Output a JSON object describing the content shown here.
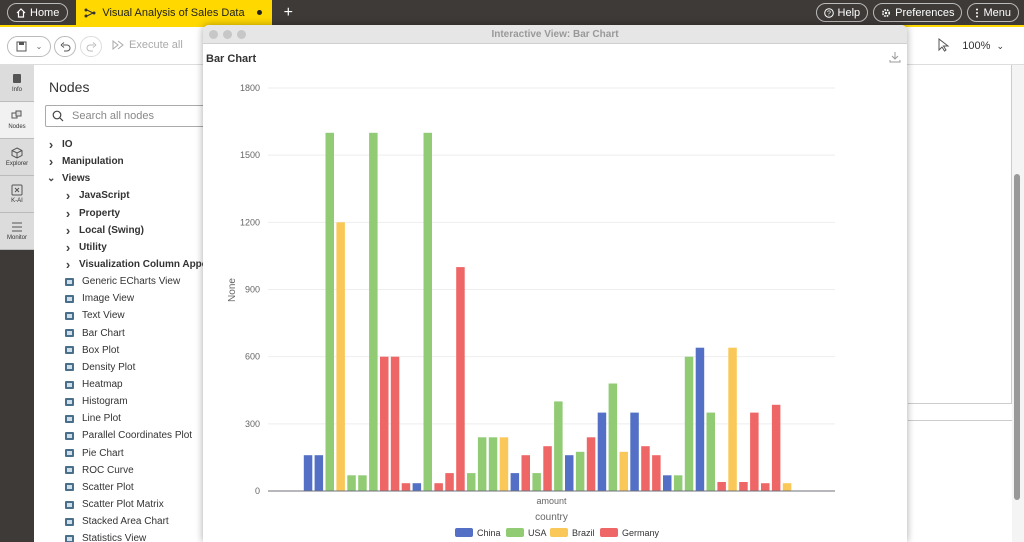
{
  "topbar": {
    "home_label": "Home",
    "workflow_tab_label": "Visual Analysis of Sales Data",
    "new_tab_label": "+",
    "help_label": "Help",
    "preferences_label": "Preferences",
    "menu_label": "Menu"
  },
  "toolbar": {
    "execute_all_label": "Execute all",
    "zoom_label": "100%"
  },
  "rail": {
    "items": [
      {
        "label": "Info",
        "icon": "info-icon"
      },
      {
        "label": "Nodes",
        "icon": "nodes-icon"
      },
      {
        "label": "Explorer",
        "icon": "explorer-icon"
      },
      {
        "label": "K-AI",
        "icon": "kai-icon"
      },
      {
        "label": "Monitor",
        "icon": "monitor-icon"
      }
    ]
  },
  "nodes_panel": {
    "title": "Nodes",
    "search_placeholder": "Search all nodes",
    "tree": [
      {
        "label": "IO",
        "kind": "cat",
        "level": 0,
        "expanded": false
      },
      {
        "label": "Manipulation",
        "kind": "cat",
        "level": 0,
        "expanded": false
      },
      {
        "label": "Views",
        "kind": "cat",
        "level": 0,
        "expanded": true
      },
      {
        "label": "JavaScript",
        "kind": "cat",
        "level": 1,
        "expanded": false
      },
      {
        "label": "Property",
        "kind": "cat",
        "level": 1,
        "expanded": false
      },
      {
        "label": "Local (Swing)",
        "kind": "cat",
        "level": 1,
        "expanded": false
      },
      {
        "label": "Utility",
        "kind": "cat",
        "level": 1,
        "expanded": false
      },
      {
        "label": "Visualization Column Appender",
        "kind": "cat",
        "level": 1,
        "expanded": false
      },
      {
        "label": "Generic ECharts View",
        "kind": "node",
        "level": 1
      },
      {
        "label": "Image View",
        "kind": "node",
        "level": 1
      },
      {
        "label": "Text View",
        "kind": "node",
        "level": 1
      },
      {
        "label": "Bar Chart",
        "kind": "node",
        "level": 1
      },
      {
        "label": "Box Plot",
        "kind": "node",
        "level": 1
      },
      {
        "label": "Density Plot",
        "kind": "node",
        "level": 1
      },
      {
        "label": "Heatmap",
        "kind": "node",
        "level": 1
      },
      {
        "label": "Histogram",
        "kind": "node",
        "level": 1
      },
      {
        "label": "Line Plot",
        "kind": "node",
        "level": 1
      },
      {
        "label": "Parallel Coordinates Plot",
        "kind": "node",
        "level": 1
      },
      {
        "label": "Pie Chart",
        "kind": "node",
        "level": 1
      },
      {
        "label": "ROC Curve",
        "kind": "node",
        "level": 1
      },
      {
        "label": "Scatter Plot",
        "kind": "node",
        "level": 1
      },
      {
        "label": "Scatter Plot Matrix",
        "kind": "node",
        "level": 1
      },
      {
        "label": "Stacked Area Chart",
        "kind": "node",
        "level": 1
      },
      {
        "label": "Statistics View",
        "kind": "node",
        "level": 1
      }
    ]
  },
  "view_window": {
    "title": "Interactive View: Bar Chart",
    "chart_title": "Bar Chart"
  },
  "chart_data": {
    "type": "bar",
    "title": "",
    "xlabel": "country",
    "ylabel": "None",
    "category_label": "amount",
    "ylim": [
      0,
      1800
    ],
    "yticks": [
      0,
      300,
      600,
      900,
      1200,
      1500,
      1800
    ],
    "grid": true,
    "legend_position": "bottom",
    "series": [
      {
        "name": "China",
        "color": "#5470c6"
      },
      {
        "name": "USA",
        "color": "#91cc75"
      },
      {
        "name": "Brazil",
        "color": "#fac858"
      },
      {
        "name": "Germany",
        "color": "#ee6666"
      }
    ],
    "bars": [
      {
        "series": "China",
        "value": 160
      },
      {
        "series": "China",
        "value": 160
      },
      {
        "series": "USA",
        "value": 1600
      },
      {
        "series": "Brazil",
        "value": 1200
      },
      {
        "series": "USA",
        "value": 70
      },
      {
        "series": "USA",
        "value": 70
      },
      {
        "series": "USA",
        "value": 1600
      },
      {
        "series": "Germany",
        "value": 600
      },
      {
        "series": "Germany",
        "value": 600
      },
      {
        "series": "Germany",
        "value": 35
      },
      {
        "series": "China",
        "value": 35
      },
      {
        "series": "USA",
        "value": 1600
      },
      {
        "series": "Germany",
        "value": 35
      },
      {
        "series": "Germany",
        "value": 80
      },
      {
        "series": "Germany",
        "value": 1000
      },
      {
        "series": "USA",
        "value": 80
      },
      {
        "series": "USA",
        "value": 240
      },
      {
        "series": "USA",
        "value": 240
      },
      {
        "series": "Brazil",
        "value": 240
      },
      {
        "series": "China",
        "value": 80
      },
      {
        "series": "Germany",
        "value": 160
      },
      {
        "series": "USA",
        "value": 80
      },
      {
        "series": "Germany",
        "value": 200
      },
      {
        "series": "USA",
        "value": 400
      },
      {
        "series": "China",
        "value": 160
      },
      {
        "series": "USA",
        "value": 175
      },
      {
        "series": "Germany",
        "value": 240
      },
      {
        "series": "China",
        "value": 350
      },
      {
        "series": "USA",
        "value": 480
      },
      {
        "series": "Brazil",
        "value": 175
      },
      {
        "series": "China",
        "value": 350
      },
      {
        "series": "Germany",
        "value": 200
      },
      {
        "series": "Germany",
        "value": 160
      },
      {
        "series": "China",
        "value": 70
      },
      {
        "series": "USA",
        "value": 70
      },
      {
        "series": "USA",
        "value": 600
      },
      {
        "series": "China",
        "value": 640
      },
      {
        "series": "USA",
        "value": 350
      },
      {
        "series": "Germany",
        "value": 40
      },
      {
        "series": "Brazil",
        "value": 640
      },
      {
        "series": "Germany",
        "value": 40
      },
      {
        "series": "Germany",
        "value": 350
      },
      {
        "series": "Germany",
        "value": 35
      },
      {
        "series": "Germany",
        "value": 385
      },
      {
        "series": "Brazil",
        "value": 35
      }
    ]
  }
}
